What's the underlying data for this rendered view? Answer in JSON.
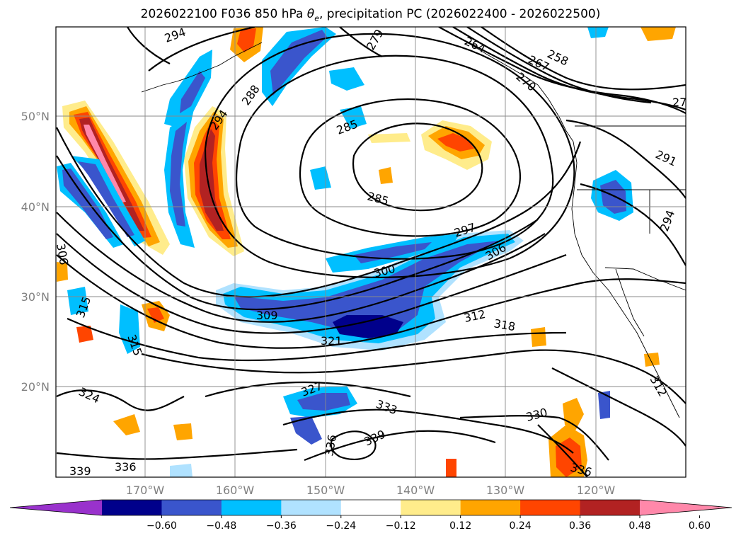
{
  "title_main": "2026022100 F036 850 hPa ",
  "title_symbol": "θ",
  "title_sub": "e",
  "title_rest": ", precipitation PC (2026022400 - 2026022500)",
  "lat_labels": [
    "50°N",
    "40°N",
    "30°N",
    "20°N"
  ],
  "lon_labels": [
    "170°W",
    "160°W",
    "150°W",
    "140°W",
    "130°W",
    "120°W"
  ],
  "colorbar": {
    "colors": [
      "#9932cc",
      "#00008b",
      "#3a55cc",
      "#00bfff",
      "#b0e2ff",
      "#ffffff",
      "#ffec8b",
      "#ffa500",
      "#ff4500",
      "#b22222",
      "#ff88aa"
    ],
    "tick_labels": [
      "−0.60",
      "−0.48",
      "−0.36",
      "−0.24",
      "−0.12",
      "0.12",
      "0.24",
      "0.36",
      "0.48",
      "0.60"
    ]
  },
  "contour_labels": [
    "294",
    "279",
    "264",
    "258",
    "267",
    "270",
    "27",
    "288",
    "294",
    "285",
    "291",
    "285",
    "294",
    "306",
    "297",
    "306",
    "300",
    "315",
    "315",
    "309",
    "312",
    "318",
    "321",
    "327",
    "324",
    "333",
    "330",
    "312",
    "336",
    "339",
    "339",
    "336",
    "336"
  ],
  "colors": {
    "contour": "#000000",
    "grid": "#8a8a8a",
    "axis_label": "#808080"
  }
}
